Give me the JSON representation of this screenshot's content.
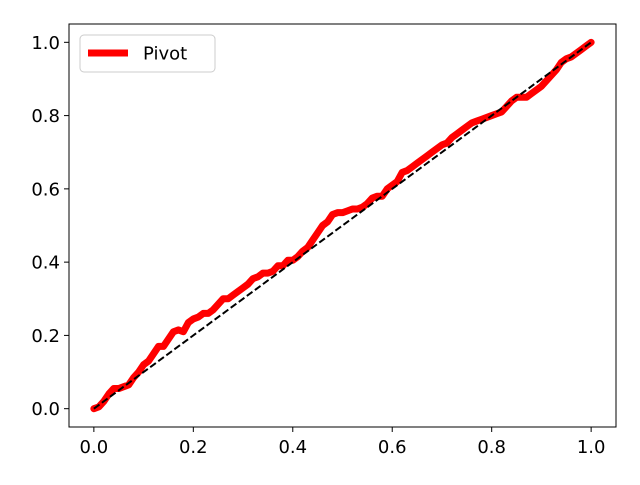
{
  "chart_data": {
    "type": "line",
    "title": "",
    "xlabel": "",
    "ylabel": "",
    "xlim": [
      -0.05,
      1.05
    ],
    "ylim": [
      -0.05,
      1.05
    ],
    "x_ticks": [
      0.0,
      0.2,
      0.4,
      0.6,
      0.8,
      1.0
    ],
    "x_tick_labels": [
      "0.0",
      "0.2",
      "0.4",
      "0.6",
      "0.8",
      "1.0"
    ],
    "y_ticks": [
      0.0,
      0.2,
      0.4,
      0.6,
      0.8,
      1.0
    ],
    "y_tick_labels": [
      "0.0",
      "0.2",
      "0.4",
      "0.6",
      "0.8",
      "1.0"
    ],
    "grid": false,
    "legend_position": "top-left",
    "series": [
      {
        "name": "Pivot",
        "color": "#ff0000",
        "style": "solid",
        "x": [
          0.0,
          0.01,
          0.02,
          0.03,
          0.04,
          0.05,
          0.06,
          0.07,
          0.08,
          0.09,
          0.1,
          0.11,
          0.12,
          0.13,
          0.14,
          0.15,
          0.16,
          0.17,
          0.18,
          0.19,
          0.2,
          0.21,
          0.22,
          0.23,
          0.24,
          0.25,
          0.26,
          0.27,
          0.28,
          0.29,
          0.3,
          0.31,
          0.32,
          0.33,
          0.34,
          0.35,
          0.36,
          0.37,
          0.38,
          0.39,
          0.4,
          0.41,
          0.42,
          0.43,
          0.44,
          0.45,
          0.46,
          0.47,
          0.48,
          0.49,
          0.5,
          0.51,
          0.52,
          0.53,
          0.54,
          0.55,
          0.56,
          0.57,
          0.58,
          0.59,
          0.6,
          0.61,
          0.62,
          0.63,
          0.64,
          0.65,
          0.66,
          0.67,
          0.68,
          0.69,
          0.7,
          0.71,
          0.72,
          0.73,
          0.74,
          0.75,
          0.76,
          0.77,
          0.78,
          0.79,
          0.8,
          0.81,
          0.82,
          0.83,
          0.84,
          0.85,
          0.86,
          0.87,
          0.88,
          0.89,
          0.9,
          0.91,
          0.92,
          0.93,
          0.94,
          0.95,
          0.96,
          0.97,
          0.98,
          0.99,
          1.0
        ],
        "y": [
          0.0,
          0.005,
          0.02,
          0.04,
          0.055,
          0.055,
          0.06,
          0.065,
          0.085,
          0.1,
          0.12,
          0.13,
          0.15,
          0.17,
          0.17,
          0.19,
          0.21,
          0.215,
          0.21,
          0.235,
          0.245,
          0.25,
          0.26,
          0.26,
          0.27,
          0.285,
          0.3,
          0.3,
          0.31,
          0.32,
          0.33,
          0.34,
          0.355,
          0.36,
          0.37,
          0.37,
          0.375,
          0.39,
          0.39,
          0.405,
          0.405,
          0.415,
          0.43,
          0.44,
          0.46,
          0.48,
          0.5,
          0.51,
          0.53,
          0.535,
          0.535,
          0.54,
          0.545,
          0.545,
          0.55,
          0.56,
          0.575,
          0.58,
          0.58,
          0.6,
          0.61,
          0.62,
          0.645,
          0.65,
          0.66,
          0.67,
          0.68,
          0.69,
          0.7,
          0.71,
          0.72,
          0.725,
          0.74,
          0.75,
          0.76,
          0.77,
          0.78,
          0.785,
          0.79,
          0.795,
          0.8,
          0.805,
          0.81,
          0.825,
          0.84,
          0.85,
          0.85,
          0.85,
          0.86,
          0.87,
          0.88,
          0.895,
          0.91,
          0.925,
          0.945,
          0.955,
          0.96,
          0.97,
          0.98,
          0.99,
          1.0
        ]
      },
      {
        "name": "",
        "color": "#000000",
        "style": "dashed",
        "x": [
          0.0,
          1.0
        ],
        "y": [
          0.0,
          1.0
        ]
      }
    ]
  }
}
